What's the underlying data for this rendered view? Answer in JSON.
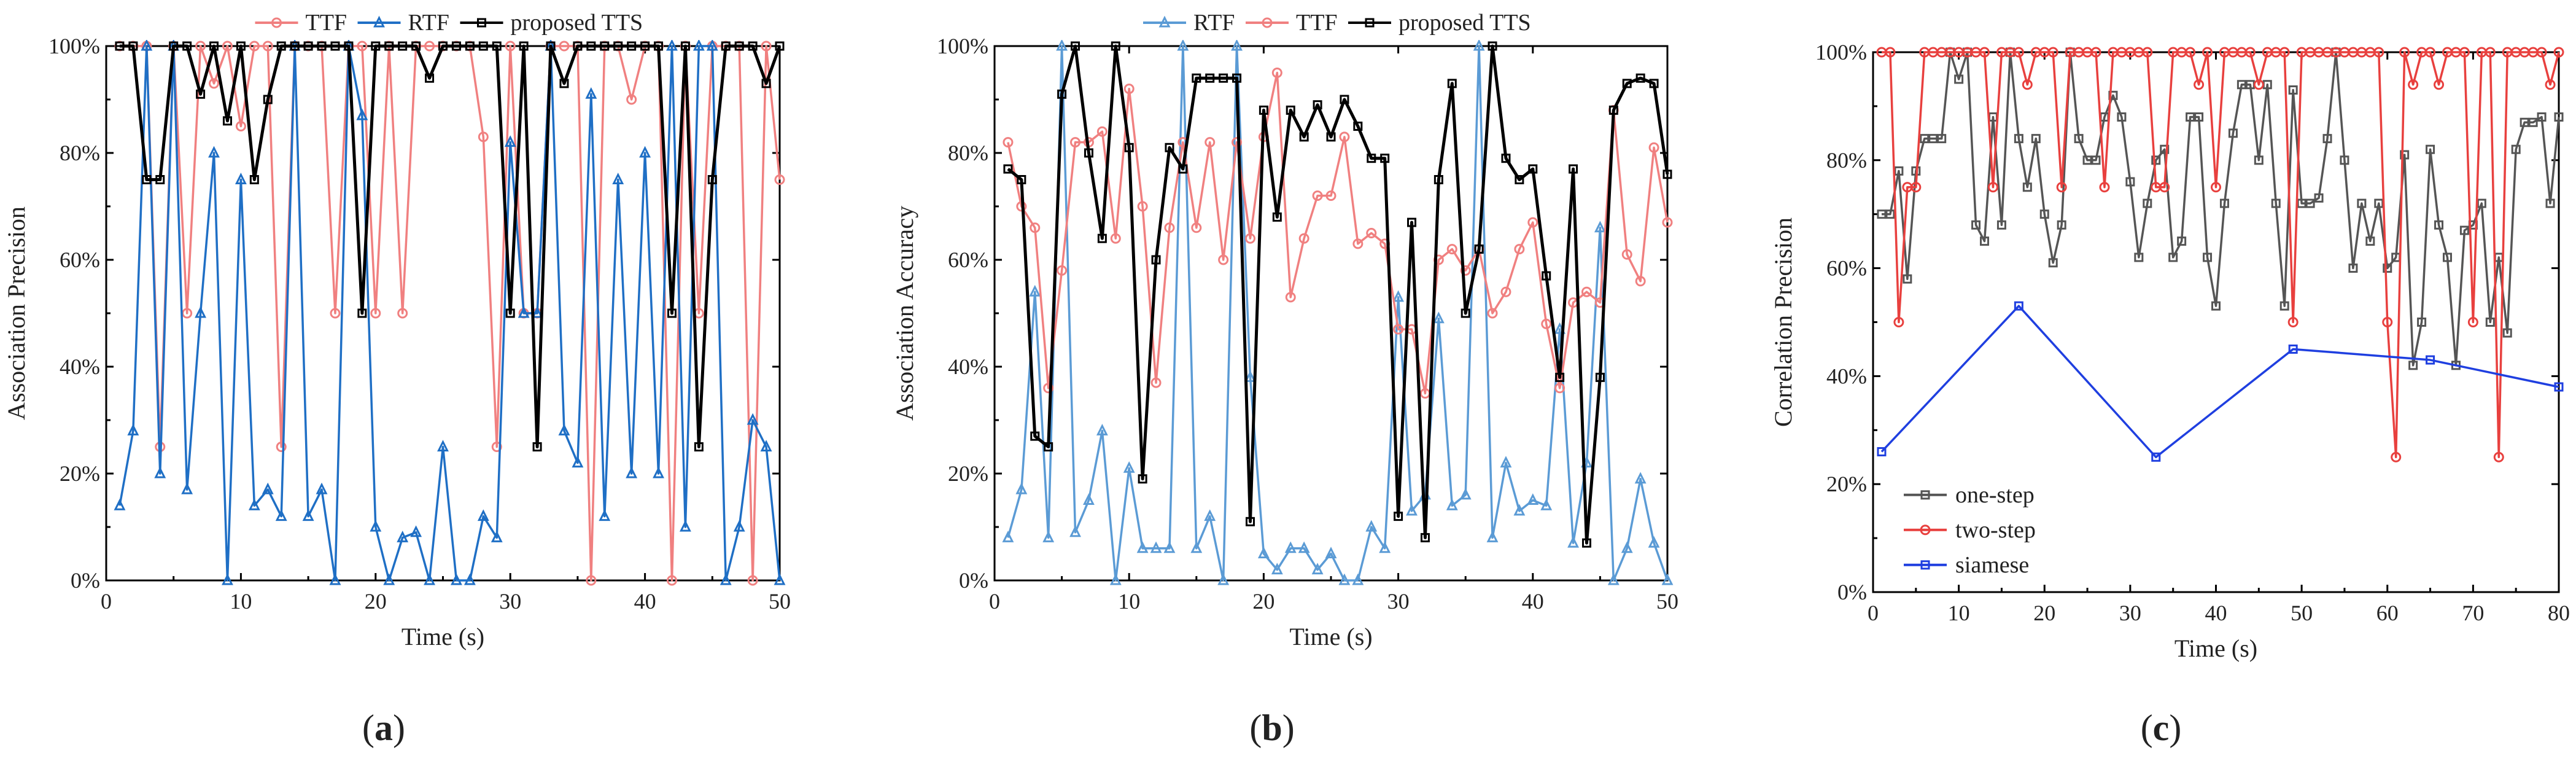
{
  "chart_data": [
    {
      "id": "a",
      "caption": "a",
      "type": "line",
      "xlabel": "Time (s)",
      "ylabel": "Association Precision",
      "xlim": [
        0,
        50
      ],
      "ylim": [
        0,
        100
      ],
      "xticks": [
        0,
        10,
        20,
        30,
        40,
        50
      ],
      "yticks": [
        0,
        20,
        40,
        60,
        80,
        100
      ],
      "ytick_suffix": "%",
      "legend": {
        "position": "top",
        "layout": "row"
      },
      "series": [
        {
          "name": "TTF",
          "color": "#f08080",
          "marker": "circle",
          "x": [
            1,
            2,
            3,
            4,
            5,
            6,
            7,
            8,
            9,
            10,
            11,
            12,
            13,
            14,
            15,
            16,
            17,
            18,
            19,
            20,
            21,
            22,
            23,
            24,
            25,
            26,
            27,
            28,
            29,
            30,
            31,
            32,
            33,
            34,
            35,
            36,
            37,
            38,
            39,
            40,
            41,
            42,
            43,
            44,
            45,
            46,
            47,
            48,
            49,
            50
          ],
          "y": [
            100,
            100,
            100,
            25,
            100,
            50,
            100,
            93,
            100,
            85,
            100,
            100,
            25,
            100,
            100,
            100,
            50,
            100,
            100,
            50,
            100,
            50,
            100,
            100,
            100,
            100,
            100,
            83,
            25,
            100,
            50,
            50,
            100,
            100,
            100,
            0,
            100,
            100,
            90,
            100,
            100,
            0,
            100,
            50,
            100,
            100,
            100,
            0,
            100,
            75
          ]
        },
        {
          "name": "RTF",
          "color": "#1f6fc5",
          "marker": "triangle",
          "x": [
            1,
            2,
            3,
            4,
            5,
            6,
            7,
            8,
            9,
            10,
            11,
            12,
            13,
            14,
            15,
            16,
            17,
            18,
            19,
            20,
            21,
            22,
            23,
            24,
            25,
            26,
            27,
            28,
            29,
            30,
            31,
            32,
            33,
            34,
            35,
            36,
            37,
            38,
            39,
            40,
            41,
            42,
            43,
            44,
            45,
            46,
            47,
            48,
            49,
            50
          ],
          "y": [
            14,
            28,
            100,
            20,
            100,
            17,
            50,
            80,
            0,
            75,
            14,
            17,
            12,
            100,
            12,
            17,
            0,
            100,
            87,
            10,
            0,
            8,
            9,
            0,
            25,
            0,
            0,
            12,
            8,
            82,
            50,
            50,
            100,
            28,
            22,
            91,
            12,
            75,
            20,
            80,
            20,
            100,
            10,
            100,
            100,
            0,
            10,
            30,
            25,
            0
          ]
        },
        {
          "name": "proposed TTS",
          "color": "#000000",
          "marker": "square",
          "x": [
            1,
            2,
            3,
            4,
            5,
            6,
            7,
            8,
            9,
            10,
            11,
            12,
            13,
            14,
            15,
            16,
            17,
            18,
            19,
            20,
            21,
            22,
            23,
            24,
            25,
            26,
            27,
            28,
            29,
            30,
            31,
            32,
            33,
            34,
            35,
            36,
            37,
            38,
            39,
            40,
            41,
            42,
            43,
            44,
            45,
            46,
            47,
            48,
            49,
            50
          ],
          "y": [
            100,
            100,
            75,
            75,
            100,
            100,
            91,
            100,
            86,
            100,
            75,
            90,
            100,
            100,
            100,
            100,
            100,
            100,
            50,
            100,
            100,
            100,
            100,
            94,
            100,
            100,
            100,
            100,
            100,
            50,
            100,
            25,
            100,
            93,
            100,
            100,
            100,
            100,
            100,
            100,
            100,
            50,
            100,
            25,
            75,
            100,
            100,
            100,
            93,
            100
          ]
        }
      ]
    },
    {
      "id": "b",
      "caption": "b",
      "type": "line",
      "xlabel": "Time (s)",
      "ylabel": "Association Accuracy",
      "xlim": [
        0,
        50
      ],
      "ylim": [
        0,
        100
      ],
      "xticks": [
        0,
        10,
        20,
        30,
        40,
        50
      ],
      "yticks": [
        0,
        20,
        40,
        60,
        80,
        100
      ],
      "ytick_suffix": "%",
      "legend": {
        "position": "top",
        "layout": "row"
      },
      "series": [
        {
          "name": "RTF",
          "color": "#5b9bd5",
          "marker": "triangle",
          "x": [
            1,
            2,
            3,
            4,
            5,
            6,
            7,
            8,
            9,
            10,
            11,
            12,
            13,
            14,
            15,
            16,
            17,
            18,
            19,
            20,
            21,
            22,
            23,
            24,
            25,
            26,
            27,
            28,
            29,
            30,
            31,
            32,
            33,
            34,
            35,
            36,
            37,
            38,
            39,
            40,
            41,
            42,
            43,
            44,
            45,
            46,
            47,
            48,
            49,
            50
          ],
          "y": [
            8,
            17,
            54,
            8,
            100,
            9,
            15,
            28,
            0,
            21,
            6,
            6,
            6,
            100,
            6,
            12,
            0,
            100,
            38,
            5,
            2,
            6,
            6,
            2,
            5,
            0,
            0,
            10,
            6,
            53,
            13,
            16,
            49,
            14,
            16,
            100,
            8,
            22,
            13,
            15,
            14,
            47,
            7,
            22,
            66,
            0,
            6,
            19,
            7,
            0
          ]
        },
        {
          "name": "TTF",
          "color": "#f08080",
          "marker": "circle",
          "x": [
            1,
            2,
            3,
            4,
            5,
            6,
            7,
            8,
            9,
            10,
            11,
            12,
            13,
            14,
            15,
            16,
            17,
            18,
            19,
            20,
            21,
            22,
            23,
            24,
            25,
            26,
            27,
            28,
            29,
            30,
            31,
            32,
            33,
            34,
            35,
            36,
            37,
            38,
            39,
            40,
            41,
            42,
            43,
            44,
            45,
            46,
            47,
            48,
            49,
            50
          ],
          "y": [
            82,
            70,
            66,
            36,
            58,
            82,
            82,
            84,
            64,
            92,
            70,
            37,
            66,
            82,
            66,
            82,
            60,
            82,
            64,
            83,
            95,
            53,
            64,
            72,
            72,
            83,
            63,
            65,
            63,
            47,
            47,
            35,
            60,
            62,
            58,
            62,
            50,
            54,
            62,
            67,
            48,
            36,
            52,
            54,
            52,
            88,
            61,
            56,
            81,
            67
          ]
        },
        {
          "name": "proposed TTS",
          "color": "#000000",
          "marker": "square",
          "x": [
            1,
            2,
            3,
            4,
            5,
            6,
            7,
            8,
            9,
            10,
            11,
            12,
            13,
            14,
            15,
            16,
            17,
            18,
            19,
            20,
            21,
            22,
            23,
            24,
            25,
            26,
            27,
            28,
            29,
            30,
            31,
            32,
            33,
            34,
            35,
            36,
            37,
            38,
            39,
            40,
            41,
            42,
            43,
            44,
            45,
            46,
            47,
            48,
            49,
            50
          ],
          "y": [
            77,
            75,
            27,
            25,
            91,
            100,
            80,
            64,
            100,
            81,
            19,
            60,
            81,
            77,
            94,
            94,
            94,
            94,
            11,
            88,
            68,
            88,
            83,
            89,
            83,
            90,
            85,
            79,
            79,
            12,
            67,
            8,
            75,
            93,
            50,
            62,
            100,
            79,
            75,
            77,
            57,
            38,
            77,
            7,
            38,
            88,
            93,
            94,
            93,
            76
          ]
        }
      ]
    },
    {
      "id": "c",
      "caption": "c",
      "type": "line",
      "xlabel": "Time (s)",
      "ylabel": "Correlation Precision",
      "xlim": [
        0,
        80
      ],
      "ylim": [
        0,
        100
      ],
      "xticks": [
        0,
        10,
        20,
        30,
        40,
        50,
        60,
        70,
        80
      ],
      "yticks": [
        0,
        20,
        40,
        60,
        80,
        100
      ],
      "ytick_suffix": "%",
      "legend": {
        "position": "lower-left",
        "layout": "column"
      },
      "series": [
        {
          "name": "one-step",
          "color": "#555555",
          "marker": "square",
          "x": [
            1,
            2,
            3,
            4,
            5,
            6,
            7,
            8,
            9,
            10,
            11,
            12,
            13,
            14,
            15,
            16,
            17,
            18,
            19,
            20,
            21,
            22,
            23,
            24,
            25,
            26,
            27,
            28,
            29,
            30,
            31,
            32,
            33,
            34,
            35,
            36,
            37,
            38,
            39,
            40,
            41,
            42,
            43,
            44,
            45,
            46,
            47,
            48,
            49,
            50,
            51,
            52,
            53,
            54,
            55,
            56,
            57,
            58,
            59,
            60,
            61,
            62,
            63,
            64,
            65,
            66,
            67,
            68,
            69,
            70,
            71,
            72,
            73,
            74,
            75,
            76,
            77,
            78,
            79,
            80
          ],
          "y": [
            70,
            70,
            78,
            58,
            78,
            84,
            84,
            84,
            100,
            95,
            100,
            68,
            65,
            88,
            68,
            100,
            84,
            75,
            84,
            70,
            61,
            68,
            100,
            84,
            80,
            80,
            88,
            92,
            88,
            76,
            62,
            72,
            80,
            82,
            62,
            65,
            88,
            88,
            62,
            53,
            72,
            85,
            94,
            94,
            80,
            94,
            72,
            53,
            93,
            72,
            72,
            73,
            84,
            100,
            80,
            60,
            72,
            65,
            72,
            60,
            62,
            81,
            42,
            50,
            82,
            68,
            62,
            42,
            67,
            68,
            72,
            50,
            62,
            48,
            82,
            87,
            87,
            88,
            72,
            88
          ]
        },
        {
          "name": "two-step",
          "color": "#e8403e",
          "marker": "circle",
          "x": [
            1,
            2,
            3,
            4,
            5,
            6,
            7,
            8,
            9,
            10,
            11,
            12,
            13,
            14,
            15,
            16,
            17,
            18,
            19,
            20,
            21,
            22,
            23,
            24,
            25,
            26,
            27,
            28,
            29,
            30,
            31,
            32,
            33,
            34,
            35,
            36,
            37,
            38,
            39,
            40,
            41,
            42,
            43,
            44,
            45,
            46,
            47,
            48,
            49,
            50,
            51,
            52,
            53,
            54,
            55,
            56,
            57,
            58,
            59,
            60,
            61,
            62,
            63,
            64,
            65,
            66,
            67,
            68,
            69,
            70,
            71,
            72,
            73,
            74,
            75,
            76,
            77,
            78,
            79,
            80
          ],
          "y": [
            100,
            100,
            50,
            75,
            75,
            100,
            100,
            100,
            100,
            100,
            100,
            100,
            100,
            75,
            100,
            100,
            100,
            94,
            100,
            100,
            100,
            75,
            100,
            100,
            100,
            100,
            75,
            100,
            100,
            100,
            100,
            100,
            75,
            75,
            100,
            100,
            100,
            94,
            100,
            75,
            100,
            100,
            100,
            100,
            94,
            100,
            100,
            100,
            50,
            100,
            100,
            100,
            100,
            100,
            100,
            100,
            100,
            100,
            100,
            50,
            25,
            100,
            94,
            100,
            100,
            94,
            100,
            100,
            100,
            50,
            100,
            100,
            25,
            100,
            100,
            100,
            100,
            100,
            94,
            100
          ]
        },
        {
          "name": "siamese",
          "color": "#1f3fe0",
          "marker": "square",
          "x": [
            1,
            17,
            33,
            49,
            65,
            80
          ],
          "y": [
            26,
            53,
            25,
            45,
            43,
            38
          ]
        }
      ]
    }
  ]
}
